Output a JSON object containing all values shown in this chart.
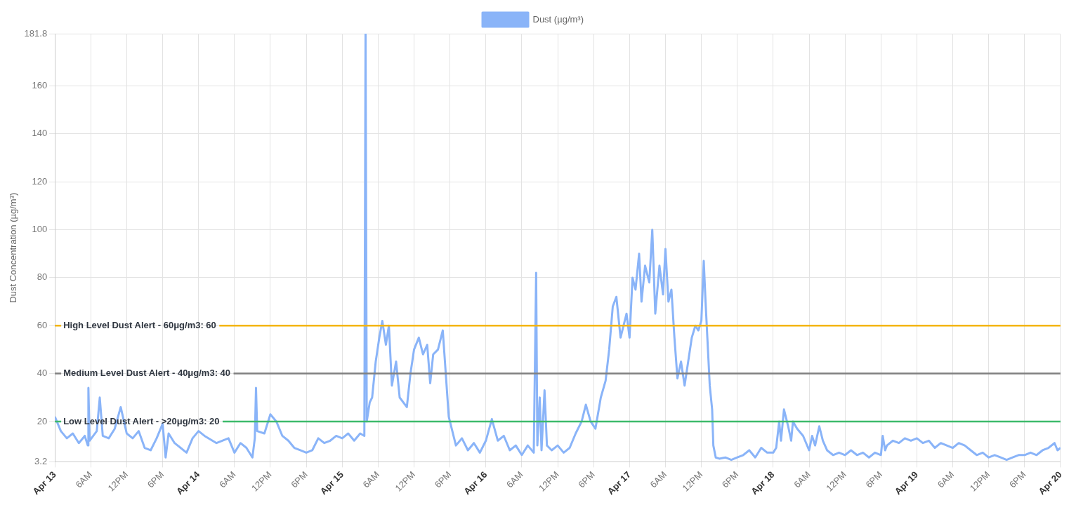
{
  "chart_data": {
    "type": "line",
    "ylabel": "Dust Concentration (µg/m³)",
    "legend": "top",
    "grid": true,
    "marker": "none",
    "line_style": "solid",
    "ylim": [
      3.2,
      181.8
    ],
    "yticks": [
      3.2,
      20,
      40,
      60,
      80,
      100,
      120,
      140,
      160,
      181.8
    ],
    "xlim": [
      "--04-13T00:00",
      "--04-20T00:00"
    ],
    "xticks": [
      {
        "value": "--04-13T00:00",
        "label": "Apr 13"
      },
      {
        "value": "--04-13T06:00",
        "label": "6AM"
      },
      {
        "value": "--04-13T12:00",
        "label": "12PM"
      },
      {
        "value": "--04-13T18:00",
        "label": "6PM"
      },
      {
        "value": "--04-14T00:00",
        "label": "Apr 14"
      },
      {
        "value": "--04-14T06:00",
        "label": "6AM"
      },
      {
        "value": "--04-14T12:00",
        "label": "12PM"
      },
      {
        "value": "--04-14T18:00",
        "label": "6PM"
      },
      {
        "value": "--04-15T00:00",
        "label": "Apr 15"
      },
      {
        "value": "--04-15T06:00",
        "label": "6AM"
      },
      {
        "value": "--04-15T12:00",
        "label": "12PM"
      },
      {
        "value": "--04-15T18:00",
        "label": "6PM"
      },
      {
        "value": "--04-16T00:00",
        "label": "Apr 16"
      },
      {
        "value": "--04-16T06:00",
        "label": "6AM"
      },
      {
        "value": "--04-16T12:00",
        "label": "12PM"
      },
      {
        "value": "--04-16T18:00",
        "label": "6PM"
      },
      {
        "value": "--04-17T00:00",
        "label": "Apr 17"
      },
      {
        "value": "--04-17T06:00",
        "label": "6AM"
      },
      {
        "value": "--04-17T12:00",
        "label": "12PM"
      },
      {
        "value": "--04-17T18:00",
        "label": "6PM"
      },
      {
        "value": "--04-18T00:00",
        "label": "Apr 18"
      },
      {
        "value": "--04-18T06:00",
        "label": "6AM"
      },
      {
        "value": "--04-18T12:00",
        "label": "12PM"
      },
      {
        "value": "--04-18T18:00",
        "label": "6PM"
      },
      {
        "value": "--04-19T00:00",
        "label": "Apr 19"
      },
      {
        "value": "--04-19T06:00",
        "label": "6AM"
      },
      {
        "value": "--04-19T12:00",
        "label": "12PM"
      },
      {
        "value": "--04-19T18:00",
        "label": "6PM"
      },
      {
        "value": "--04-20T00:00",
        "label": "Apr 20"
      }
    ],
    "ref_lines": [
      {
        "axis": "y",
        "value": 60,
        "label": "High Level Dust Alert - 60μg/m3: 60",
        "color": "#f4b400"
      },
      {
        "axis": "y",
        "value": 40,
        "label": "Medium Level Dust Alert - 40μg/m3: 40",
        "color": "#808080"
      },
      {
        "axis": "y",
        "value": 20,
        "label": "Low Level Dust Alert - >20μg/m3: 20",
        "color": "#3dba6b"
      }
    ],
    "series": [
      {
        "name": "Dust (µg/m³)",
        "color": "#8ab4f8",
        "x": [
          "--04-13T00:00",
          "--04-13T01:00",
          "--04-13T02:00",
          "--04-13T03:00",
          "--04-13T04:00",
          "--04-13T05:00",
          "--04-13T05:30",
          "--04-13T05:36",
          "--04-13T05:48",
          "--04-13T07:00",
          "--04-13T07:30",
          "--04-13T08:00",
          "--04-13T09:00",
          "--04-13T10:00",
          "--04-13T11:00",
          "--04-13T12:00",
          "--04-13T13:00",
          "--04-13T14:00",
          "--04-13T15:00",
          "--04-13T16:00",
          "--04-13T17:00",
          "--04-13T18:00",
          "--04-13T18:30",
          "--04-13T19:00",
          "--04-13T20:00",
          "--04-13T21:00",
          "--04-13T22:00",
          "--04-13T23:00",
          "--04-14T00:00",
          "--04-14T01:00",
          "--04-14T03:00",
          "--04-14T05:00",
          "--04-14T06:00",
          "--04-14T07:00",
          "--04-14T08:00",
          "--04-14T09:00",
          "--04-14T09:24",
          "--04-14T09:36",
          "--04-14T09:48",
          "--04-14T11:00",
          "--04-14T12:00",
          "--04-14T13:00",
          "--04-14T14:00",
          "--04-14T15:00",
          "--04-14T16:00",
          "--04-14T17:00",
          "--04-14T18:00",
          "--04-14T19:00",
          "--04-14T20:00",
          "--04-14T21:00",
          "--04-14T22:00",
          "--04-14T23:00",
          "--04-15T00:00",
          "--04-15T01:00",
          "--04-15T02:00",
          "--04-15T03:00",
          "--04-15T03:42",
          "--04-15T03:54",
          "--04-15T04:06",
          "--04-15T04:36",
          "--04-15T05:00",
          "--04-15T05:36",
          "--04-15T06:12",
          "--04-15T06:42",
          "--04-15T07:18",
          "--04-15T07:48",
          "--04-15T08:18",
          "--04-15T09:00",
          "--04-15T09:36",
          "--04-15T10:48",
          "--04-15T11:24",
          "--04-15T12:00",
          "--04-15T12:48",
          "--04-15T13:30",
          "--04-15T14:12",
          "--04-15T14:42",
          "--04-15T15:12",
          "--04-15T16:00",
          "--04-15T16:48",
          "--04-15T17:18",
          "--04-15T17:48",
          "--04-15T18:30",
          "--04-15T19:00",
          "--04-15T20:00",
          "--04-15T21:00",
          "--04-15T22:00",
          "--04-15T23:00",
          "--04-16T00:00",
          "--04-16T01:00",
          "--04-16T02:00",
          "--04-16T03:00",
          "--04-16T04:00",
          "--04-16T05:00",
          "--04-16T06:00",
          "--04-16T07:00",
          "--04-16T08:00",
          "--04-16T08:24",
          "--04-16T08:36",
          "--04-16T09:00",
          "--04-16T09:18",
          "--04-16T09:48",
          "--04-16T10:12",
          "--04-16T11:00",
          "--04-16T12:00",
          "--04-16T13:00",
          "--04-16T14:00",
          "--04-16T15:00",
          "--04-16T16:00",
          "--04-16T16:42",
          "--04-16T17:30",
          "--04-16T18:18",
          "--04-16T19:12",
          "--04-16T20:00",
          "--04-16T20:36",
          "--04-16T21:12",
          "--04-16T21:48",
          "--04-16T22:30",
          "--04-16T23:30",
          "--04-17T00:00",
          "--04-17T00:30",
          "--04-17T01:00",
          "--04-17T01:36",
          "--04-17T02:00",
          "--04-17T02:36",
          "--04-17T03:18",
          "--04-17T03:48",
          "--04-17T04:18",
          "--04-17T05:00",
          "--04-17T05:36",
          "--04-17T06:00",
          "--04-17T06:30",
          "--04-17T07:00",
          "--04-17T07:30",
          "--04-17T08:00",
          "--04-17T08:36",
          "--04-17T09:12",
          "--04-17T09:48",
          "--04-17T10:24",
          "--04-17T11:00",
          "--04-17T11:30",
          "--04-17T12:00",
          "--04-17T12:24",
          "--04-17T12:42",
          "--04-17T13:00",
          "--04-17T13:24",
          "--04-17T13:48",
          "--04-17T14:00",
          "--04-17T14:24",
          "--04-17T15:00",
          "--04-17T16:00",
          "--04-17T17:00",
          "--04-17T18:00",
          "--04-17T19:00",
          "--04-17T20:00",
          "--04-17T21:00",
          "--04-17T22:00",
          "--04-17T23:00",
          "--04-18T00:00",
          "--04-18T00:30",
          "--04-18T01:00",
          "--04-18T01:18",
          "--04-18T01:48",
          "--04-18T02:30",
          "--04-18T03:00",
          "--04-18T03:18",
          "--04-18T04:00",
          "--04-18T05:00",
          "--04-18T06:00",
          "--04-18T06:30",
          "--04-18T07:00",
          "--04-18T07:42",
          "--04-18T08:18",
          "--04-18T09:00",
          "--04-18T10:00",
          "--04-18T11:00",
          "--04-18T12:00",
          "--04-18T13:00",
          "--04-18T14:00",
          "--04-18T15:00",
          "--04-18T16:00",
          "--04-18T17:00",
          "--04-18T18:00",
          "--04-18T18:18",
          "--04-18T18:42",
          "--04-18T19:00",
          "--04-18T20:00",
          "--04-18T21:00",
          "--04-18T22:00",
          "--04-18T23:00",
          "--04-19T00:00",
          "--04-19T01:00",
          "--04-19T02:00",
          "--04-19T03:00",
          "--04-19T04:00",
          "--04-19T05:00",
          "--04-19T06:00",
          "--04-19T07:00",
          "--04-19T08:00",
          "--04-19T09:00",
          "--04-19T10:00",
          "--04-19T11:00",
          "--04-19T12:00",
          "--04-19T13:00",
          "--04-19T14:00",
          "--04-19T15:00",
          "--04-19T16:00",
          "--04-19T17:00",
          "--04-19T18:00",
          "--04-19T19:00",
          "--04-19T20:00",
          "--04-19T21:00",
          "--04-19T22:00",
          "--04-19T23:00",
          "--04-19T23:30",
          "--04-20T00:00"
        ],
        "values": [
          22,
          16,
          13,
          15,
          11,
          14,
          10,
          34,
          12,
          16,
          30,
          14,
          13,
          17,
          26,
          15,
          13,
          16,
          9,
          8,
          13,
          19,
          5,
          15,
          11,
          9,
          7,
          13,
          16,
          14,
          11,
          13,
          7,
          11,
          9,
          5,
          13,
          34,
          16,
          15,
          23,
          20,
          14,
          12,
          9,
          8,
          7,
          8,
          13,
          11,
          12,
          14,
          13,
          15,
          12,
          15,
          14,
          181.8,
          20,
          28,
          30,
          45,
          55,
          62,
          52,
          60,
          35,
          45,
          30,
          26,
          40,
          50,
          55,
          48,
          52,
          36,
          48,
          50,
          58,
          40,
          22,
          15,
          10,
          13,
          8,
          11,
          7,
          12,
          21,
          12,
          14,
          8,
          10,
          6,
          10,
          7,
          82,
          10,
          30,
          8,
          33,
          10,
          8,
          10,
          7,
          9,
          15,
          20,
          27,
          20,
          17,
          30,
          37,
          50,
          68,
          72,
          55,
          65,
          55,
          80,
          75,
          90,
          70,
          85,
          78,
          100,
          65,
          85,
          73,
          92,
          70,
          75,
          55,
          38,
          45,
          35,
          45,
          55,
          60,
          58,
          62,
          87,
          70,
          55,
          35,
          25,
          10,
          5,
          4.5,
          5,
          4,
          5,
          6,
          8,
          5,
          9,
          7,
          7,
          9,
          20,
          12,
          25,
          18,
          12,
          20,
          17,
          14,
          8,
          14,
          10,
          18,
          12,
          8,
          6,
          7,
          6,
          8,
          6,
          7,
          5,
          7,
          6,
          14,
          8,
          10,
          12,
          11,
          13,
          12,
          13,
          11,
          12,
          9,
          11,
          10,
          9,
          11,
          10,
          8,
          6,
          7,
          5,
          6,
          5,
          4,
          5,
          6,
          6,
          7,
          6,
          8,
          9,
          11,
          8,
          9
        ]
      }
    ]
  }
}
